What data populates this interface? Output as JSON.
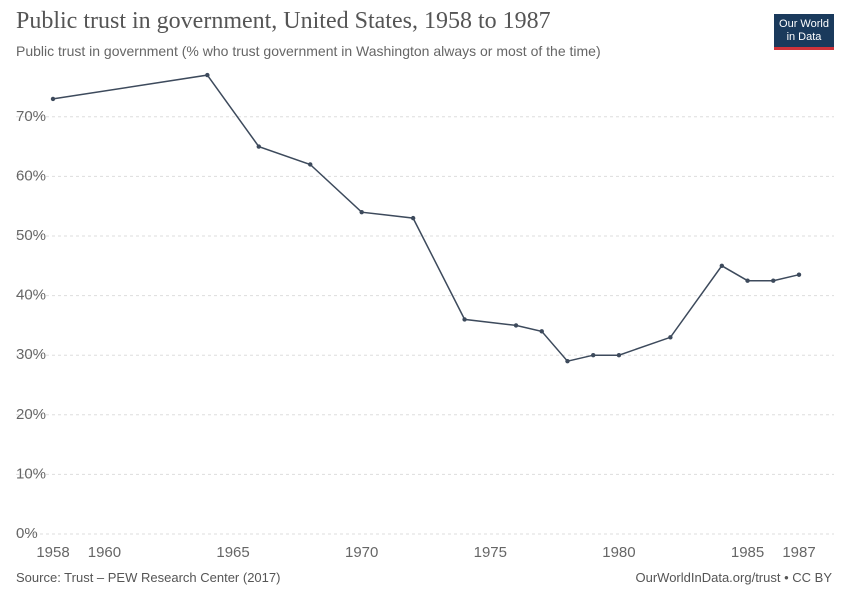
{
  "header": {
    "title": "Public trust in government, United States, 1958 to 1987",
    "subtitle": "Public trust in government (% who trust government in Washington always or most of the time)"
  },
  "logo": {
    "line1": "Our World",
    "line2": "in Data",
    "bg_color": "#1a3a5c",
    "accent_color": "#d0333a"
  },
  "footer": {
    "source": "Source: Trust – PEW Research Center (2017)",
    "credit": "OurWorldInData.org/trust • CC BY"
  },
  "chart_data": {
    "type": "line",
    "title": "Public trust in government, United States, 1958 to 1987",
    "subtitle": "Public trust in government (% who trust government in Washington always or most of the time)",
    "series": [
      {
        "color": "#3d4a5c",
        "points": [
          {
            "x": 1958,
            "y": 73
          },
          {
            "x": 1964,
            "y": 77
          },
          {
            "x": 1966,
            "y": 65
          },
          {
            "x": 1968,
            "y": 62
          },
          {
            "x": 1970,
            "y": 54
          },
          {
            "x": 1972,
            "y": 53
          },
          {
            "x": 1974,
            "y": 36
          },
          {
            "x": 1976,
            "y": 35
          },
          {
            "x": 1977,
            "y": 34
          },
          {
            "x": 1978,
            "y": 29
          },
          {
            "x": 1979,
            "y": 30
          },
          {
            "x": 1980,
            "y": 30
          },
          {
            "x": 1982,
            "y": 33
          },
          {
            "x": 1984,
            "y": 45
          },
          {
            "x": 1985,
            "y": 42.5
          },
          {
            "x": 1986,
            "y": 42.5
          },
          {
            "x": 1987,
            "y": 43.5
          }
        ]
      }
    ],
    "xlim": [
      1958,
      1987
    ],
    "ylim": [
      0,
      77
    ],
    "x_ticks": [
      1958,
      1960,
      1965,
      1970,
      1975,
      1980,
      1985,
      1987
    ],
    "y_ticks": [
      0,
      10,
      20,
      30,
      40,
      50,
      60,
      70
    ],
    "y_tick_labels": [
      "0%",
      "10%",
      "20%",
      "30%",
      "40%",
      "50%",
      "60%",
      "70%"
    ],
    "grid": "horizontal-dashed",
    "legend": "none"
  }
}
